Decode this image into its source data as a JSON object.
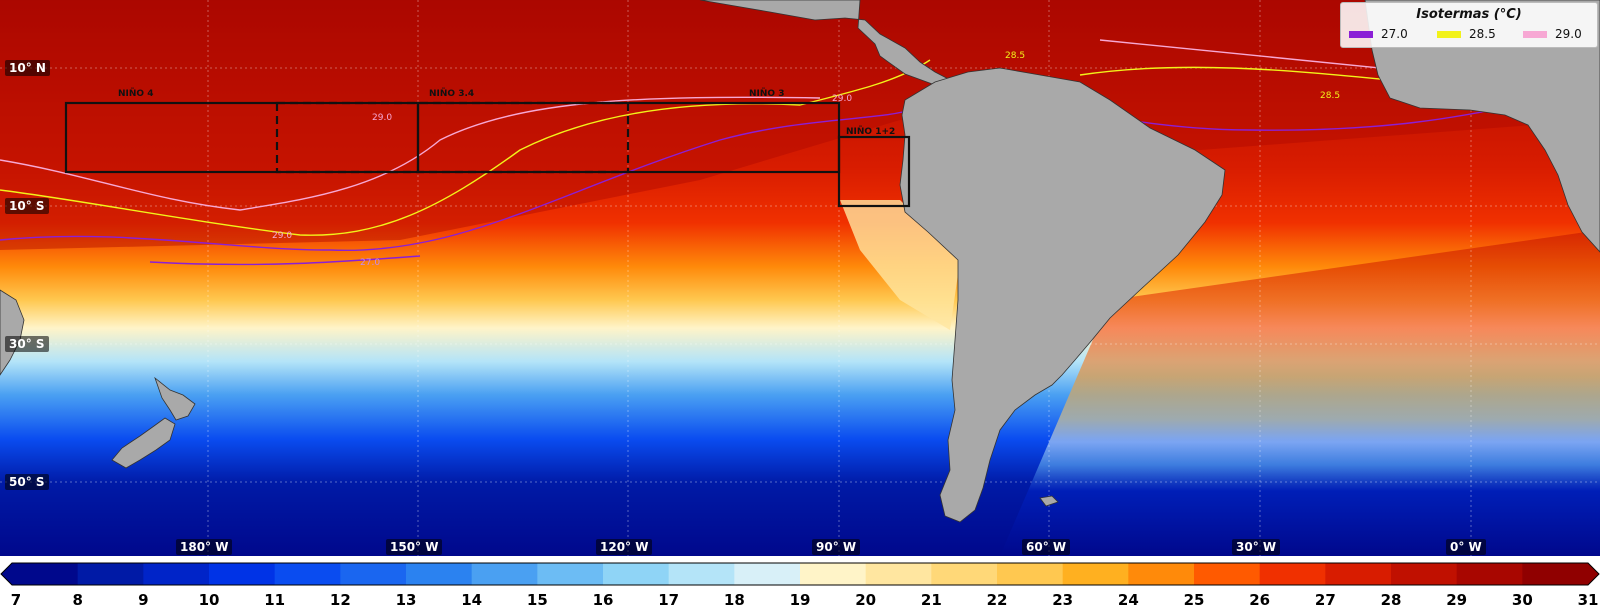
{
  "map": {
    "lat_labels": [
      "10° N",
      "10° S",
      "30° S",
      "50° S"
    ],
    "lon_labels": [
      "180° W",
      "150° W",
      "120° W",
      "90° W",
      "60° W",
      "30° W",
      "0° W"
    ],
    "regions": [
      "NIÑO 4",
      "NIÑO 3.4",
      "NIÑO 3",
      "NIÑO 1+2"
    ],
    "isotherm_values": [
      "29.0",
      "28.5",
      "27.0"
    ]
  },
  "legend": {
    "title": "Isotermas (°C)",
    "items": [
      {
        "label": "27.0",
        "color": "#8b1fd6"
      },
      {
        "label": "28.5",
        "color": "#f2f21a"
      },
      {
        "label": "29.0",
        "color": "#f7a8d4"
      }
    ]
  },
  "colorbar": {
    "ticks": [
      "7",
      "8",
      "9",
      "10",
      "11",
      "12",
      "13",
      "14",
      "15",
      "16",
      "17",
      "18",
      "19",
      "20",
      "21",
      "22",
      "23",
      "24",
      "25",
      "26",
      "27",
      "28",
      "29",
      "30",
      "31"
    ],
    "colors": [
      "#00088c",
      "#001aa6",
      "#0024c8",
      "#0033e6",
      "#0a4cf0",
      "#1a66f0",
      "#2b82f0",
      "#4aa0f2",
      "#6cbcf4",
      "#8fd4f6",
      "#b4e4f8",
      "#d8f0f8",
      "#fff4c8",
      "#ffe6a0",
      "#ffd878",
      "#ffc850",
      "#ffb020",
      "#ff8a0a",
      "#ff5a00",
      "#f03000",
      "#d81c00",
      "#c01000",
      "#a80600",
      "#900000"
    ]
  }
}
